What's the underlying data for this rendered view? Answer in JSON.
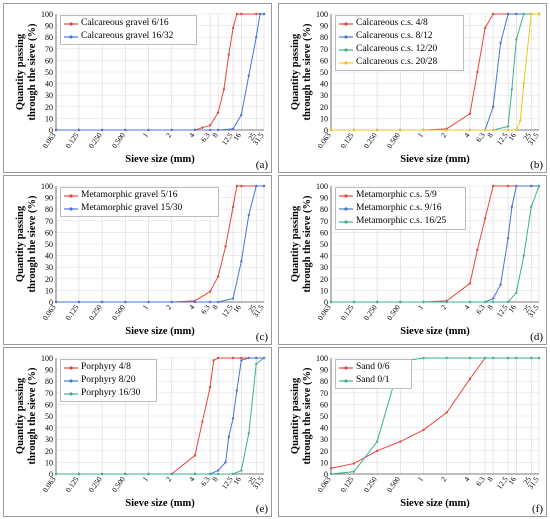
{
  "figure": {
    "sieves": [
      "0.063",
      "0.125",
      "0.250",
      "0.500",
      "1",
      "2",
      "4",
      "6.3",
      "8",
      "12.5",
      "16",
      "25",
      "31.5"
    ],
    "y_ticks": [
      "0",
      "10",
      "20",
      "30",
      "40",
      "50",
      "60",
      "70",
      "80",
      "90",
      "100"
    ],
    "ylabel_line1": "Quantity passing",
    "ylabel_line2": "through the sieve (%)",
    "xlabel": "Sieve size (mm)"
  },
  "chart_data": [
    {
      "panel": "(a)",
      "type": "line",
      "xlabel": "Sieve size (mm)",
      "ylabel": "Quantity passing through the sieve (%)",
      "ylim": [
        0,
        100
      ],
      "series": [
        {
          "name": "Calcareous gravel 6/16",
          "color": "#e8453c",
          "points": [
            [
              0.063,
              0
            ],
            [
              0.125,
              0
            ],
            [
              0.25,
              0
            ],
            [
              0.5,
              0
            ],
            [
              1,
              0
            ],
            [
              2,
              0
            ],
            [
              4,
              0
            ],
            [
              5,
              2
            ],
            [
              6.3,
              4
            ],
            [
              8,
              15
            ],
            [
              9.5,
              35
            ],
            [
              11,
              65
            ],
            [
              12.5,
              88
            ],
            [
              14,
              100
            ],
            [
              16,
              100
            ],
            [
              25,
              100
            ],
            [
              31.5,
              100
            ]
          ]
        },
        {
          "name": "Calcareous gravel 16/32",
          "color": "#4a74d4",
          "points": [
            [
              0.063,
              0
            ],
            [
              0.125,
              0
            ],
            [
              0.25,
              0
            ],
            [
              0.5,
              0
            ],
            [
              1,
              0
            ],
            [
              2,
              0
            ],
            [
              4,
              0
            ],
            [
              6.3,
              0
            ],
            [
              8,
              0
            ],
            [
              12.5,
              1
            ],
            [
              16,
              13
            ],
            [
              20,
              47
            ],
            [
              25,
              80
            ],
            [
              28,
              100
            ],
            [
              31.5,
              100
            ]
          ]
        }
      ]
    },
    {
      "panel": "(b)",
      "type": "line",
      "xlabel": "Sieve size (mm)",
      "ylabel": "Quantity passing through the sieve (%)",
      "ylim": [
        0,
        100
      ],
      "series": [
        {
          "name": "Calcareous c.s. 4/8",
          "color": "#e8453c",
          "points": [
            [
              0.063,
              0
            ],
            [
              0.125,
              0
            ],
            [
              0.25,
              0
            ],
            [
              0.5,
              0
            ],
            [
              1,
              0
            ],
            [
              2,
              1
            ],
            [
              4,
              14
            ],
            [
              5,
              50
            ],
            [
              6.3,
              88
            ],
            [
              8,
              100
            ],
            [
              12.5,
              100
            ],
            [
              16,
              100
            ],
            [
              25,
              100
            ],
            [
              31.5,
              100
            ]
          ]
        },
        {
          "name": "Calcareous c.s. 8/12",
          "color": "#4a74d4",
          "points": [
            [
              0.063,
              0
            ],
            [
              0.125,
              0
            ],
            [
              0.25,
              0
            ],
            [
              0.5,
              0
            ],
            [
              1,
              0
            ],
            [
              2,
              0
            ],
            [
              4,
              0
            ],
            [
              6.3,
              0
            ],
            [
              8,
              20
            ],
            [
              10,
              75
            ],
            [
              12.5,
              100
            ],
            [
              16,
              100
            ],
            [
              25,
              100
            ],
            [
              31.5,
              100
            ]
          ]
        },
        {
          "name": "Calcareous c.s. 12/20",
          "color": "#3faf8f",
          "points": [
            [
              0.063,
              0
            ],
            [
              0.125,
              0
            ],
            [
              0.25,
              0
            ],
            [
              0.5,
              0
            ],
            [
              1,
              0
            ],
            [
              2,
              0
            ],
            [
              4,
              0
            ],
            [
              6.3,
              0
            ],
            [
              8,
              0
            ],
            [
              12.5,
              3
            ],
            [
              14,
              35
            ],
            [
              16,
              78
            ],
            [
              20,
              100
            ],
            [
              25,
              100
            ],
            [
              31.5,
              100
            ]
          ]
        },
        {
          "name": "Calcareous c.s. 20/28",
          "color": "#f2c419",
          "points": [
            [
              0.063,
              0
            ],
            [
              0.125,
              0
            ],
            [
              0.25,
              0
            ],
            [
              0.5,
              0
            ],
            [
              1,
              0
            ],
            [
              2,
              0
            ],
            [
              4,
              0
            ],
            [
              6.3,
              0
            ],
            [
              8,
              0
            ],
            [
              12.5,
              0
            ],
            [
              16,
              0
            ],
            [
              18,
              8
            ],
            [
              20,
              40
            ],
            [
              25,
              100
            ],
            [
              31.5,
              100
            ]
          ]
        }
      ]
    },
    {
      "panel": "(c)",
      "type": "line",
      "xlabel": "Sieve size (mm)",
      "ylabel": "Quantity passing through the sieve (%)",
      "ylim": [
        0,
        100
      ],
      "series": [
        {
          "name": "Metamorphic gravel 5/16",
          "color": "#e8453c",
          "points": [
            [
              0.063,
              0
            ],
            [
              0.125,
              0
            ],
            [
              0.25,
              0
            ],
            [
              0.5,
              0
            ],
            [
              1,
              0
            ],
            [
              2,
              0
            ],
            [
              4,
              1
            ],
            [
              6.3,
              9
            ],
            [
              8,
              22
            ],
            [
              10,
              48
            ],
            [
              12.5,
              82
            ],
            [
              14,
              100
            ],
            [
              16,
              100
            ],
            [
              25,
              100
            ],
            [
              31.5,
              100
            ]
          ]
        },
        {
          "name": "Metamorphic gravel 15/30",
          "color": "#4a74d4",
          "points": [
            [
              0.063,
              0
            ],
            [
              0.125,
              0
            ],
            [
              0.25,
              0
            ],
            [
              0.5,
              0
            ],
            [
              1,
              0
            ],
            [
              2,
              0
            ],
            [
              4,
              0
            ],
            [
              6.3,
              0
            ],
            [
              8,
              0
            ],
            [
              12.5,
              3
            ],
            [
              16,
              35
            ],
            [
              20,
              75
            ],
            [
              25,
              100
            ],
            [
              31.5,
              100
            ]
          ]
        }
      ]
    },
    {
      "panel": "(d)",
      "type": "line",
      "xlabel": "Sieve size (mm)",
      "ylabel": "Quantity passing through the sieve (%)",
      "ylim": [
        0,
        100
      ],
      "series": [
        {
          "name": "Metamorphic c.s. 5/9",
          "color": "#e8453c",
          "points": [
            [
              0.063,
              0
            ],
            [
              0.125,
              0
            ],
            [
              0.25,
              0
            ],
            [
              0.5,
              0
            ],
            [
              1,
              0
            ],
            [
              2,
              1
            ],
            [
              4,
              16
            ],
            [
              5,
              45
            ],
            [
              6.3,
              72
            ],
            [
              8,
              100
            ],
            [
              12.5,
              100
            ],
            [
              16,
              100
            ],
            [
              25,
              100
            ],
            [
              31.5,
              100
            ]
          ]
        },
        {
          "name": "Metamorphic c.s. 9/16",
          "color": "#4a74d4",
          "points": [
            [
              0.063,
              0
            ],
            [
              0.125,
              0
            ],
            [
              0.25,
              0
            ],
            [
              0.5,
              0
            ],
            [
              1,
              0
            ],
            [
              2,
              0
            ],
            [
              4,
              0
            ],
            [
              6.3,
              0
            ],
            [
              8,
              3
            ],
            [
              10,
              15
            ],
            [
              12.5,
              55
            ],
            [
              14,
              82
            ],
            [
              16,
              100
            ],
            [
              25,
              100
            ],
            [
              31.5,
              100
            ]
          ]
        },
        {
          "name": "Metamorphic c.s. 16/25",
          "color": "#3faf8f",
          "points": [
            [
              0.063,
              0
            ],
            [
              0.125,
              0
            ],
            [
              0.25,
              0
            ],
            [
              0.5,
              0
            ],
            [
              1,
              0
            ],
            [
              2,
              0
            ],
            [
              4,
              0
            ],
            [
              6.3,
              0
            ],
            [
              8,
              0
            ],
            [
              12.5,
              0
            ],
            [
              16,
              8
            ],
            [
              20,
              40
            ],
            [
              25,
              82
            ],
            [
              31.5,
              100
            ]
          ]
        }
      ]
    },
    {
      "panel": "(e)",
      "type": "line",
      "xlabel": "Sieve size (mm)",
      "ylabel": "Quantity passing through the sieve (%)",
      "ylim": [
        0,
        100
      ],
      "series": [
        {
          "name": "Porphyry 4/8",
          "color": "#e8453c",
          "points": [
            [
              0.063,
              0
            ],
            [
              0.125,
              0
            ],
            [
              0.25,
              0
            ],
            [
              0.5,
              0
            ],
            [
              1,
              0
            ],
            [
              2,
              0
            ],
            [
              4,
              16
            ],
            [
              5,
              45
            ],
            [
              6.3,
              75
            ],
            [
              7,
              98
            ],
            [
              8,
              100
            ],
            [
              12.5,
              100
            ],
            [
              16,
              100
            ],
            [
              25,
              100
            ],
            [
              31.5,
              100
            ]
          ]
        },
        {
          "name": "Porphyry 8/20",
          "color": "#4a74d4",
          "points": [
            [
              0.063,
              0
            ],
            [
              0.125,
              0
            ],
            [
              0.25,
              0
            ],
            [
              0.5,
              0
            ],
            [
              1,
              0
            ],
            [
              2,
              0
            ],
            [
              4,
              0
            ],
            [
              6.3,
              0
            ],
            [
              8,
              3
            ],
            [
              10,
              10
            ],
            [
              11,
              32
            ],
            [
              12.5,
              48
            ],
            [
              14,
              72
            ],
            [
              16,
              98
            ],
            [
              20,
              100
            ],
            [
              25,
              100
            ],
            [
              31.5,
              100
            ]
          ]
        },
        {
          "name": "Porphyry 16/30",
          "color": "#3faf8f",
          "points": [
            [
              0.063,
              0
            ],
            [
              0.125,
              0
            ],
            [
              0.25,
              0
            ],
            [
              0.5,
              0
            ],
            [
              1,
              0
            ],
            [
              2,
              0
            ],
            [
              4,
              0
            ],
            [
              6.3,
              0
            ],
            [
              8,
              0
            ],
            [
              12.5,
              0
            ],
            [
              16,
              3
            ],
            [
              20,
              35
            ],
            [
              25,
              95
            ],
            [
              31.5,
              100
            ]
          ]
        }
      ]
    },
    {
      "panel": "(f)",
      "type": "line",
      "xlabel": "Sieve size (mm)",
      "ylabel": "Quantity passing through the sieve (%)",
      "ylim": [
        0,
        100
      ],
      "series": [
        {
          "name": "Sand 0/6",
          "color": "#e8453c",
          "points": [
            [
              0.063,
              5
            ],
            [
              0.125,
              9
            ],
            [
              0.25,
              20
            ],
            [
              0.5,
              28
            ],
            [
              1,
              38
            ],
            [
              2,
              53
            ],
            [
              4,
              82
            ],
            [
              6.3,
              100
            ],
            [
              8,
              100
            ],
            [
              12.5,
              100
            ],
            [
              16,
              100
            ],
            [
              25,
              100
            ],
            [
              31.5,
              100
            ]
          ]
        },
        {
          "name": "Sand 0/1",
          "color": "#3faf8f",
          "points": [
            [
              0.063,
              0
            ],
            [
              0.125,
              2
            ],
            [
              0.25,
              28
            ],
            [
              0.5,
              97
            ],
            [
              1,
              100
            ],
            [
              2,
              100
            ],
            [
              4,
              100
            ],
            [
              6.3,
              100
            ],
            [
              8,
              100
            ],
            [
              12.5,
              100
            ],
            [
              16,
              100
            ],
            [
              25,
              100
            ],
            [
              31.5,
              100
            ]
          ]
        }
      ]
    }
  ]
}
